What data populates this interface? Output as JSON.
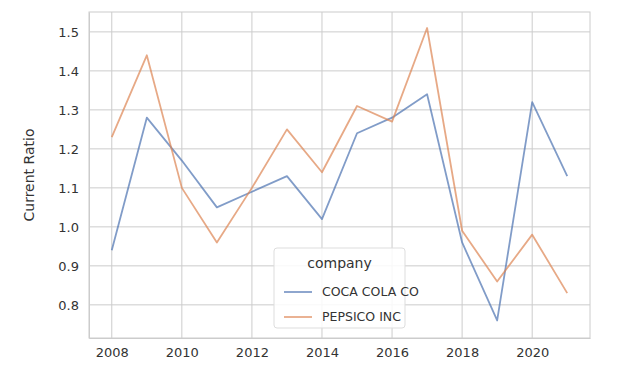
{
  "chart_data": {
    "type": "line",
    "y_label": "Current Ratio",
    "legend_title": "company",
    "legend": "lower center",
    "grid": true,
    "x": [
      2008,
      2009,
      2010,
      2011,
      2012,
      2013,
      2014,
      2015,
      2016,
      2017,
      2018,
      2019,
      2020,
      2021
    ],
    "series": [
      {
        "name": "COCA COLA CO",
        "color": "#4c72b0",
        "values": [
          0.94,
          1.28,
          1.17,
          1.05,
          1.09,
          1.13,
          1.02,
          1.24,
          1.28,
          1.34,
          0.96,
          0.76,
          1.32,
          1.13
        ]
      },
      {
        "name": "PEPSICO INC",
        "color": "#dd8452",
        "values": [
          1.23,
          1.44,
          1.1,
          0.96,
          1.1,
          1.25,
          1.14,
          1.31,
          1.27,
          1.51,
          0.99,
          0.86,
          0.98,
          0.83
        ]
      }
    ],
    "xlim": [
      2007.35,
      2021.65
    ],
    "xticks": [
      2008,
      2010,
      2012,
      2014,
      2016,
      2018,
      2020
    ],
    "ylim": [
      0.715,
      1.551
    ],
    "yticks": [
      {
        "value": 0.8,
        "label": "0.8"
      },
      {
        "value": 0.9,
        "label": "0.9"
      },
      {
        "value": 1.0,
        "label": "1.0"
      },
      {
        "value": 1.1,
        "label": "1.1"
      },
      {
        "value": 1.2,
        "label": "1.2"
      },
      {
        "value": 1.3,
        "label": "1.3"
      },
      {
        "value": 1.4,
        "label": "1.4"
      },
      {
        "value": 1.5,
        "label": "1.5"
      }
    ]
  }
}
